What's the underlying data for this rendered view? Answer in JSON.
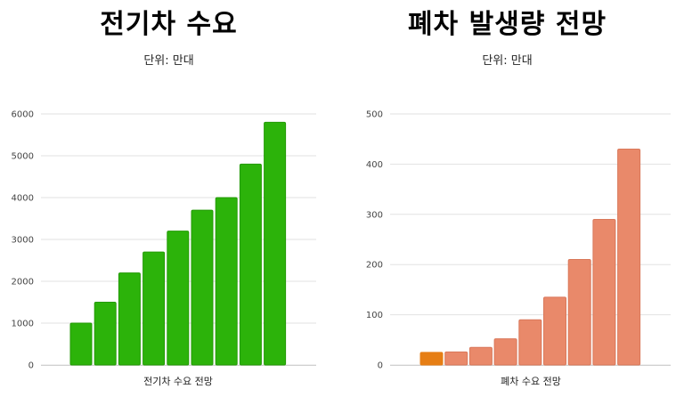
{
  "colors": {
    "green": "#2cb30a",
    "green_edge": "#239a06",
    "salmon": "#e9896a",
    "salmon_edge": "#d9785a",
    "orange_highlight": "#e67e14",
    "grid": "#e2e2e2"
  },
  "chart_data": [
    {
      "type": "bar",
      "title": "전기차 수요",
      "subtitle": "단위: 만대",
      "xlabel": "전기차 수요 전망",
      "ylabel": "",
      "ylim": [
        0,
        6000
      ],
      "yticks": [
        "0",
        "1000",
        "2000",
        "3000",
        "4000",
        "5000",
        "6000"
      ],
      "grid": true,
      "legend": "none",
      "values": [
        1000,
        1500,
        2200,
        2700,
        3200,
        3700,
        4000,
        4800,
        5800
      ],
      "color": "green"
    },
    {
      "type": "bar",
      "title": "폐차 발생량 전망",
      "subtitle": "단위: 만대",
      "xlabel": "폐차 수요 전망",
      "ylabel": "",
      "ylim": [
        0,
        500
      ],
      "yticks": [
        "0",
        "100",
        "200",
        "300",
        "400",
        "500"
      ],
      "grid": true,
      "legend": "none",
      "values": [
        25,
        26,
        35,
        52,
        90,
        135,
        210,
        290,
        430
      ],
      "color": "salmon",
      "highlight_index": 0,
      "highlight_color": "orange_highlight"
    }
  ]
}
